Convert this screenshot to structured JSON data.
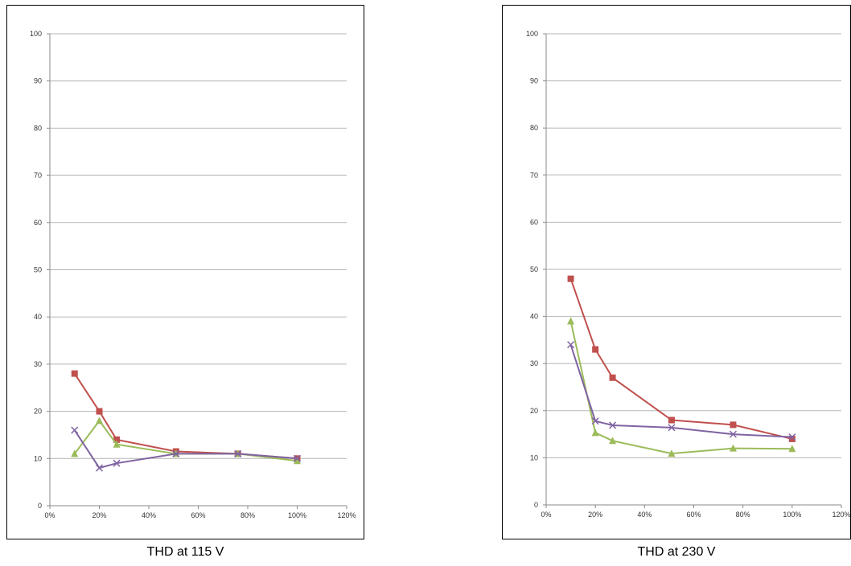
{
  "chart_data": [
    {
      "type": "line",
      "title": "THD at 115 V",
      "xlabel": "",
      "ylabel": "",
      "xlim": [
        0,
        120
      ],
      "ylim": [
        0,
        100
      ],
      "x_ticks": [
        "0%",
        "20%",
        "40%",
        "60%",
        "80%",
        "100%",
        "120%"
      ],
      "y_ticks": [
        "0",
        "10",
        "20",
        "30",
        "40",
        "50",
        "60",
        "70",
        "80",
        "90",
        "100"
      ],
      "grid": true,
      "legend": "none",
      "series": [
        {
          "color": "#C0504D",
          "marker": "square",
          "points": [
            [
              10,
              28
            ],
            [
              20,
              20
            ],
            [
              27,
              14
            ],
            [
              51,
              11.5
            ],
            [
              76,
              11
            ],
            [
              100,
              10
            ]
          ]
        },
        {
          "color": "#9BBB59",
          "marker": "triangle",
          "points": [
            [
              10,
              11
            ],
            [
              20,
              18
            ],
            [
              27,
              13
            ],
            [
              51,
              11
            ],
            [
              76,
              11
            ],
            [
              100,
              9.5
            ]
          ]
        },
        {
          "color": "#8064A2",
          "marker": "x",
          "points": [
            [
              10,
              16
            ],
            [
              20,
              8
            ],
            [
              27,
              9
            ],
            [
              51,
              11
            ],
            [
              76,
              11
            ],
            [
              100,
              10
            ]
          ]
        }
      ]
    },
    {
      "type": "line",
      "title": "THD at 230 V",
      "xlabel": "",
      "ylabel": "",
      "xlim": [
        0,
        120
      ],
      "ylim": [
        0,
        100
      ],
      "x_ticks": [
        "0%",
        "20%",
        "40%",
        "60%",
        "80%",
        "100%",
        "120%"
      ],
      "y_ticks": [
        "0",
        "10",
        "20",
        "30",
        "40",
        "50",
        "60",
        "70",
        "80",
        "90",
        "100"
      ],
      "grid": true,
      "legend": "none",
      "series": [
        {
          "color": "#C0504D",
          "marker": "square",
          "points": [
            [
              10,
              48
            ],
            [
              20,
              33
            ],
            [
              27,
              27
            ],
            [
              51,
              18
            ],
            [
              76,
              17
            ],
            [
              100,
              14
            ]
          ]
        },
        {
          "color": "#9BBB59",
          "marker": "triangle",
          "points": [
            [
              10,
              39
            ],
            [
              20,
              15.3
            ],
            [
              27,
              13.6
            ],
            [
              51,
              10.9
            ],
            [
              76,
              12
            ],
            [
              100,
              11.9
            ]
          ]
        },
        {
          "color": "#8064A2",
          "marker": "x",
          "points": [
            [
              10,
              34
            ],
            [
              20,
              17.8
            ],
            [
              27,
              16.9
            ],
            [
              51,
              16.4
            ],
            [
              76,
              15
            ],
            [
              100,
              14.4
            ]
          ]
        }
      ]
    }
  ]
}
